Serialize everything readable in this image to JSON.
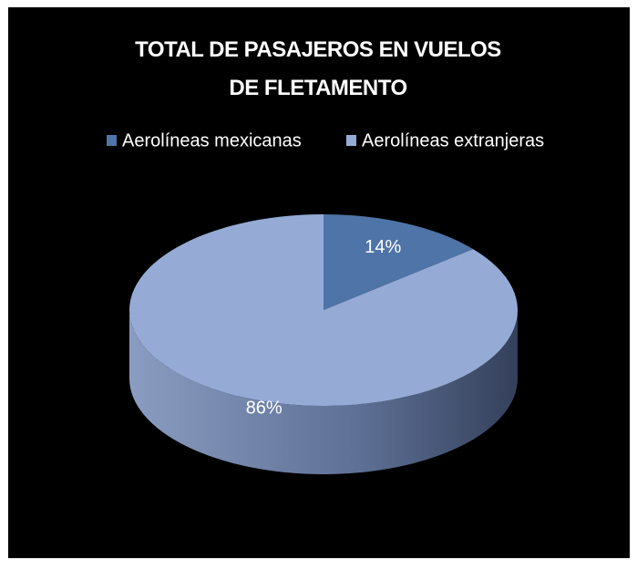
{
  "chart_data": {
    "type": "pie",
    "title": "TOTAL DE PASAJEROS EN VUELOS DE FLETAMENTO",
    "categories": [
      "Aerolíneas mexicanas",
      "Aerolíneas extranjeras"
    ],
    "values": [
      14,
      86
    ],
    "value_labels": [
      "14%",
      "86%"
    ],
    "colors": [
      "#4e74a8",
      "#95abd6"
    ],
    "legend": "top"
  }
}
